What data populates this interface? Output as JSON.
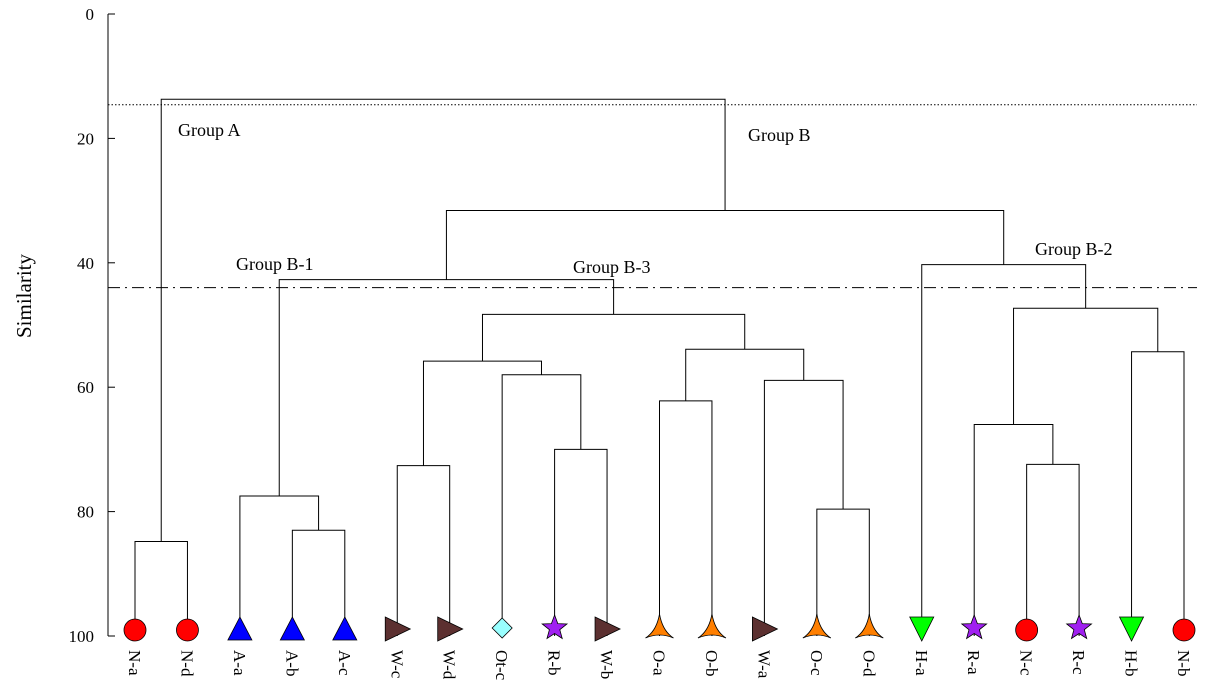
{
  "chart_data": {
    "type": "dendrogram",
    "ylabel": "Similarity",
    "ylim": [
      0,
      100
    ],
    "yticks": [
      0,
      20,
      40,
      60,
      80,
      100
    ],
    "y_inverted": true,
    "leaves": [
      {
        "label": "N-a",
        "marker": "circle",
        "color": "#ff0000"
      },
      {
        "label": "N-d",
        "marker": "circle",
        "color": "#ff0000"
      },
      {
        "label": "A-a",
        "marker": "triangle-up",
        "color": "#0000ff"
      },
      {
        "label": "A-b",
        "marker": "triangle-up",
        "color": "#0000ff"
      },
      {
        "label": "A-c",
        "marker": "triangle-up",
        "color": "#0000ff"
      },
      {
        "label": "W-c",
        "marker": "triangle-right",
        "color": "#5c3030"
      },
      {
        "label": "W-d",
        "marker": "triangle-right",
        "color": "#5c3030"
      },
      {
        "label": "Ot-c",
        "marker": "diamond",
        "color": "#99ffff"
      },
      {
        "label": "R-b",
        "marker": "star",
        "color": "#a020f0"
      },
      {
        "label": "W-b",
        "marker": "triangle-right",
        "color": "#5c3030"
      },
      {
        "label": "O-a",
        "marker": "tri-star",
        "color": "#ff7f00"
      },
      {
        "label": "O-b",
        "marker": "tri-star",
        "color": "#ff7f00"
      },
      {
        "label": "W-a",
        "marker": "triangle-right",
        "color": "#5c3030"
      },
      {
        "label": "O-c",
        "marker": "tri-star",
        "color": "#ff7f00"
      },
      {
        "label": "O-d",
        "marker": "tri-star",
        "color": "#ff7f00"
      },
      {
        "label": "H-a",
        "marker": "triangle-down",
        "color": "#00ff00"
      },
      {
        "label": "R-a",
        "marker": "star",
        "color": "#a020f0"
      },
      {
        "label": "N-c",
        "marker": "circle",
        "color": "#ff0000"
      },
      {
        "label": "R-c",
        "marker": "star",
        "color": "#a020f0"
      },
      {
        "label": "H-b",
        "marker": "triangle-down",
        "color": "#00ff00"
      },
      {
        "label": "N-b",
        "marker": "circle",
        "color": "#ff0000"
      }
    ],
    "merges": [
      {
        "id": "m1",
        "a": "N-a",
        "b": "N-d",
        "similarity": 84.8
      },
      {
        "id": "m2",
        "a": "A-b",
        "b": "A-c",
        "similarity": 83.0
      },
      {
        "id": "m3",
        "a": "A-a",
        "b": "m2",
        "similarity": 77.5
      },
      {
        "id": "m4",
        "a": "W-c",
        "b": "W-d",
        "similarity": 72.6
      },
      {
        "id": "m5",
        "a": "R-b",
        "b": "W-b",
        "similarity": 70.0
      },
      {
        "id": "m6",
        "a": "Ot-c",
        "b": "m5",
        "similarity": 58.0
      },
      {
        "id": "m7",
        "a": "m4",
        "b": "m6",
        "similarity": 55.8
      },
      {
        "id": "m8",
        "a": "O-a",
        "b": "O-b",
        "similarity": 62.2
      },
      {
        "id": "m9",
        "a": "O-c",
        "b": "O-d",
        "similarity": 79.6
      },
      {
        "id": "m10",
        "a": "W-a",
        "b": "m9",
        "similarity": 58.9
      },
      {
        "id": "m11",
        "a": "m8",
        "b": "m10",
        "similarity": 53.9
      },
      {
        "id": "m12",
        "a": "m7",
        "b": "m11",
        "similarity": 48.3
      },
      {
        "id": "m13",
        "a": "m3",
        "b": "m12",
        "similarity": 42.7
      },
      {
        "id": "m14",
        "a": "N-c",
        "b": "R-c",
        "similarity": 72.4
      },
      {
        "id": "m15",
        "a": "R-a",
        "b": "m14",
        "similarity": 66.0
      },
      {
        "id": "m16",
        "a": "H-b",
        "b": "N-b",
        "similarity": 54.3
      },
      {
        "id": "m17",
        "a": "m15",
        "b": "m16",
        "similarity": 47.3
      },
      {
        "id": "m18",
        "a": "H-a",
        "b": "m17",
        "similarity": 40.3
      },
      {
        "id": "m19",
        "a": "m13",
        "b": "m18",
        "similarity": 31.6
      },
      {
        "id": "m20",
        "a": "m1",
        "b": "m19",
        "similarity": 13.7
      }
    ],
    "reference_lines": [
      {
        "similarity": 14.6,
        "style": "dotted"
      },
      {
        "similarity": 44.0,
        "style": "dashdot"
      }
    ],
    "annotations": [
      {
        "text": "Group A"
      },
      {
        "text": "Group B"
      },
      {
        "text": "Group B-1"
      },
      {
        "text": "Group B-3"
      },
      {
        "text": "Group B-2"
      }
    ]
  }
}
